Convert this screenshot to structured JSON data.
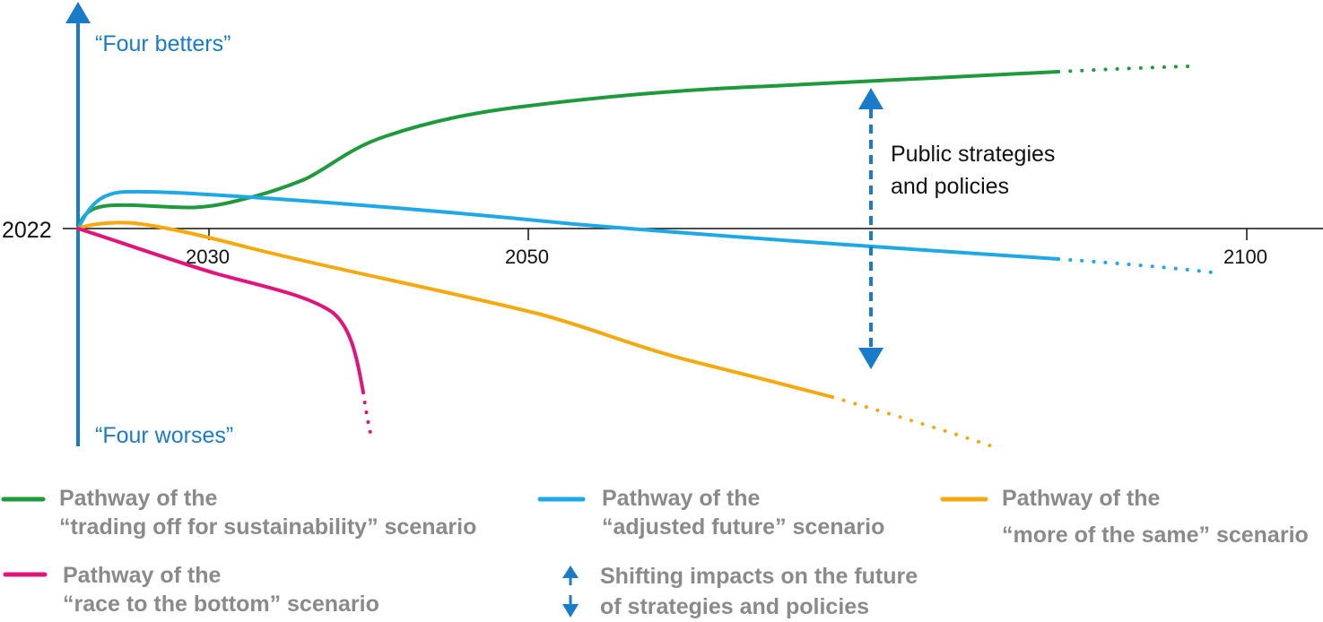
{
  "diagram": {
    "start_year_label": "2022",
    "x_ticks": [
      "2030",
      "2050",
      "2100"
    ],
    "top_label": "“Four betters”",
    "bottom_label": "“Four worses”",
    "annotation": [
      "Public strategies",
      "and policies"
    ],
    "colors": {
      "axis": "#1a7bc9",
      "green": "#1e9a3c",
      "blue": "#1ea8e6",
      "orange": "#f5a90f",
      "magenta": "#e2137a",
      "legend_text": "#8a8a8a",
      "baseline": "#111111"
    }
  },
  "legend": {
    "green": [
      "Pathway of the",
      "“trading off for sustainability” scenario"
    ],
    "blue": [
      "Pathway of the",
      "“adjusted future” scenario"
    ],
    "orange": [
      "Pathway of the",
      "“more of the same” scenario"
    ],
    "magenta": [
      "Pathway of the",
      "“race to the bottom” scenario"
    ],
    "shift": [
      "Shifting impacts on the future",
      "of strategies and policies"
    ]
  }
}
